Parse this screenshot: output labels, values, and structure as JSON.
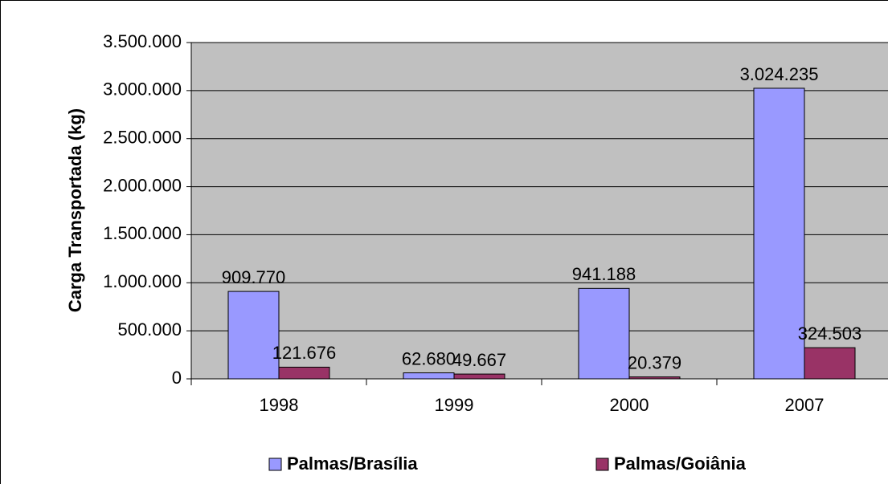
{
  "chart_data": {
    "type": "bar",
    "ylabel": "Carga Transportada (kg)",
    "categories": [
      "1998",
      "1999",
      "2000",
      "2007"
    ],
    "series": [
      {
        "name": "Palmas/Brasília",
        "color": "#9999ff",
        "values": [
          909770,
          62680,
          941188,
          3024235
        ],
        "value_labels": [
          "909.770",
          "62.680",
          "941.188",
          "3.024.235"
        ]
      },
      {
        "name": "Palmas/Goiânia",
        "color": "#993366",
        "values": [
          121676,
          49667,
          20379,
          324503
        ],
        "value_labels": [
          "121.676",
          "49.667",
          "20.379",
          "324.503"
        ]
      }
    ],
    "ylim": [
      0,
      3500000
    ],
    "yticks": [
      0,
      {
        "value": 500000,
        "label": "500.000"
      },
      {
        "value": 1000000,
        "label": "1.000.000"
      },
      {
        "value": 1500000,
        "label": "1.500.000"
      },
      {
        "value": 2000000,
        "label": "2.000.000"
      },
      {
        "value": 2500000,
        "label": "2.500.000"
      },
      {
        "value": 3000000,
        "label": "3.000.000"
      },
      {
        "value": 3500000,
        "label": "3.500.000"
      }
    ],
    "grid": true,
    "plot_background": "#c0c0c0",
    "legend": "bottom"
  }
}
